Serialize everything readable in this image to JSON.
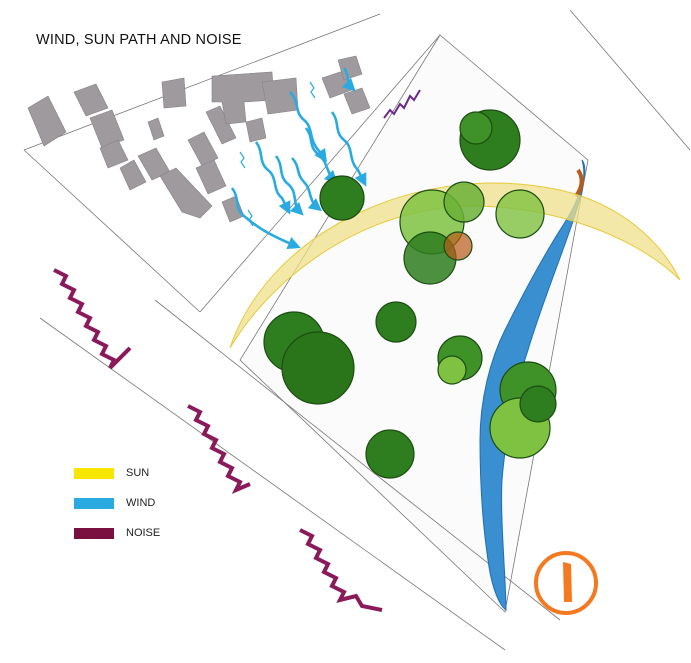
{
  "title": "WIND, SUN PATH AND NOISE",
  "legend": [
    {
      "label": "SUN",
      "color": "#f7e600"
    },
    {
      "label": "WIND",
      "color": "#29abe2"
    },
    {
      "label": "NOISE",
      "color": "#7a1040"
    }
  ],
  "colors": {
    "building": "#9e9a9e",
    "wind_arrow": "#29abe2",
    "noise": "#8b1a5a",
    "sun_arc": "#efe08a",
    "river": "#3a8fd0",
    "tree_dark": "#2e7d1e",
    "tree_light": "#7fc241",
    "north_arrow": "#f47920"
  },
  "icons": [
    "north-arrow-icon"
  ]
}
